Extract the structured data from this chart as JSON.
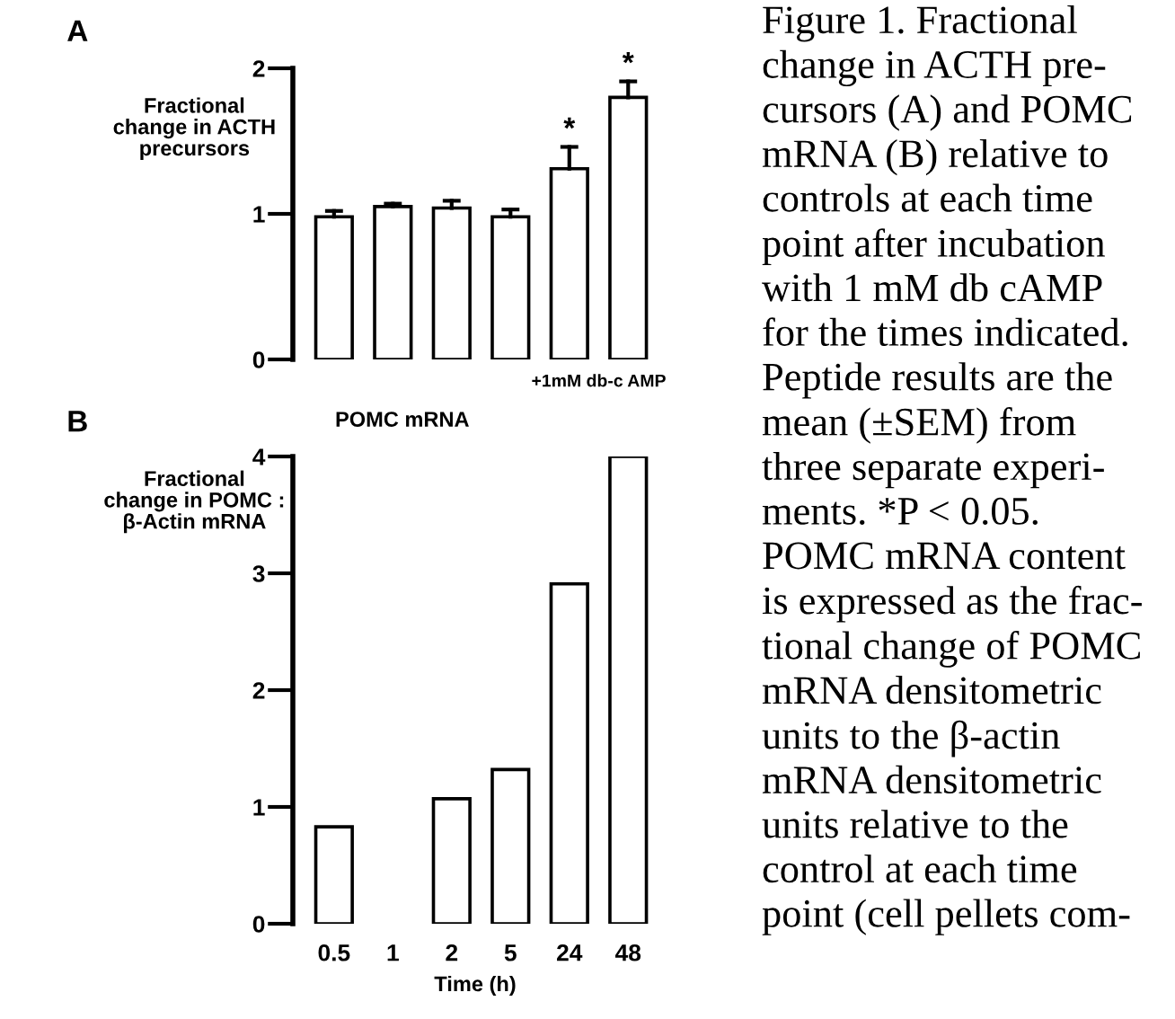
{
  "chart_data": [
    {
      "type": "bar",
      "title": "A",
      "ylabel": "Fractional\nchange in ACTH\nprecursors",
      "categories": [
        "0.5",
        "1",
        "2",
        "5",
        "24",
        "48"
      ],
      "values": [
        0.98,
        1.05,
        1.04,
        0.98,
        1.31,
        1.8
      ],
      "errors": [
        [
          0.98,
          1.02
        ],
        [
          1.05,
          1.07
        ],
        [
          1.04,
          1.09
        ],
        [
          0.98,
          1.03
        ],
        [
          1.31,
          1.46
        ],
        [
          1.8,
          1.91
        ]
      ],
      "color": "#ffffff",
      "ylim": [
        0,
        2
      ],
      "yticks": [
        0,
        1,
        2
      ],
      "tick_labels": "y",
      "grid": false,
      "legend": false,
      "annotations": [
        {
          "text": "*",
          "x": "24",
          "y": 1.46
        },
        {
          "text": "*",
          "x": "48",
          "y": 1.91
        },
        "+1mM db-c AMP",
        "Figure 1. Fractional\nchange in ACTH pre-\ncursors (A) and POMC\nmRNA (B) relative to\ncontrols at each time\npoint after incubation\nwith 1 mM db cAMP\nfor the times indicated.\nPeptide results are the\nmean (±SEM) from\nthree separate experi-\nments. *P < 0.05.\nPOMC mRNA content\nis expressed as the frac-\ntional change of POMC\nmRNA densitometric\nunits to the β-actin\nmRNA densitometric\nunits relative to the\ncontrol at each time\npoint (cell pellets com-"
      ]
    },
    {
      "type": "bar",
      "title": "POMC mRNA",
      "ylabel": "Fractional\nchange in POMC :\nβ-Actin mRNA",
      "xlabel": "Time (h)",
      "categories": [
        "0.5",
        "1",
        "2",
        "5",
        "24",
        "48"
      ],
      "values": [
        0.83,
        null,
        1.07,
        1.32,
        2.91,
        4.0
      ],
      "color": "#ffffff",
      "ylim": [
        0,
        4
      ],
      "yticks": [
        0,
        1,
        2,
        3,
        4
      ],
      "grid": false,
      "legend": false,
      "annotations": [
        "B"
      ]
    }
  ]
}
